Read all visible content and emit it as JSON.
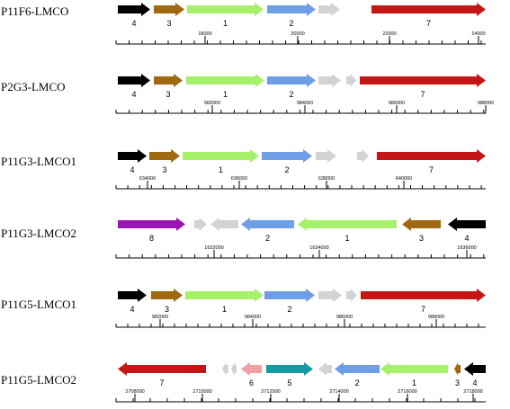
{
  "colors": {
    "black": "#000000",
    "brown": "#a0680f",
    "lightgreen": "#a6f06a",
    "blue": "#6e9fe6",
    "grey": "#d3d3d3",
    "red": "#c51616",
    "purple": "#9a14b4",
    "pink": "#f0a0a0",
    "teal": "#139aa3",
    "axis": "#000000"
  },
  "tracks": [
    {
      "label": "P11F6-LMCO",
      "ticks": [
        "18000",
        "20000",
        "22000",
        "24000"
      ],
      "genes": [
        {
          "num": "4",
          "color": "black",
          "dir": "right"
        },
        {
          "num": "3",
          "color": "brown",
          "dir": "right"
        },
        {
          "num": "1",
          "color": "lightgreen",
          "dir": "right"
        },
        {
          "num": "2",
          "color": "blue",
          "dir": "right"
        },
        {
          "num": "",
          "color": "grey",
          "dir": "right"
        },
        {
          "num": "7",
          "color": "red",
          "dir": "right"
        }
      ]
    },
    {
      "label": "P2G3-LMCO",
      "ticks": [
        "982000",
        "984000",
        "986000",
        "988000"
      ],
      "genes": [
        {
          "num": "4",
          "color": "black",
          "dir": "right"
        },
        {
          "num": "3",
          "color": "brown",
          "dir": "right"
        },
        {
          "num": "1",
          "color": "lightgreen",
          "dir": "right"
        },
        {
          "num": "2",
          "color": "blue",
          "dir": "right"
        },
        {
          "num": "",
          "color": "grey",
          "dir": "right"
        },
        {
          "num": "",
          "color": "grey",
          "dir": "right"
        },
        {
          "num": "7",
          "color": "red",
          "dir": "right"
        }
      ]
    },
    {
      "label": "P11G3-LMCO1",
      "ticks": [
        "634000",
        "636000",
        "638000",
        "640000"
      ],
      "genes": [
        {
          "num": "4",
          "color": "black",
          "dir": "right"
        },
        {
          "num": "3",
          "color": "brown",
          "dir": "right"
        },
        {
          "num": "1",
          "color": "lightgreen",
          "dir": "right"
        },
        {
          "num": "2",
          "color": "blue",
          "dir": "right"
        },
        {
          "num": "",
          "color": "grey",
          "dir": "right"
        },
        {
          "num": "",
          "color": "grey",
          "dir": "right"
        },
        {
          "num": "7",
          "color": "red",
          "dir": "right"
        }
      ]
    },
    {
      "label": "P11G3-LMCO2",
      "ticks": [
        "1632000",
        "1634000",
        "1636000"
      ],
      "genes": [
        {
          "num": "8",
          "color": "purple",
          "dir": "right"
        },
        {
          "num": "",
          "color": "grey",
          "dir": "right"
        },
        {
          "num": "",
          "color": "grey",
          "dir": "left"
        },
        {
          "num": "2",
          "color": "blue",
          "dir": "left"
        },
        {
          "num": "1",
          "color": "lightgreen",
          "dir": "left"
        },
        {
          "num": "3",
          "color": "brown",
          "dir": "left"
        },
        {
          "num": "4",
          "color": "black",
          "dir": "left"
        }
      ]
    },
    {
      "label": "P11G5-LMCO1",
      "ticks": [
        "982000",
        "984000",
        "986000",
        "988000"
      ],
      "genes": [
        {
          "num": "4",
          "color": "black",
          "dir": "right"
        },
        {
          "num": "3",
          "color": "brown",
          "dir": "right"
        },
        {
          "num": "1",
          "color": "lightgreen",
          "dir": "right"
        },
        {
          "num": "2",
          "color": "blue",
          "dir": "right"
        },
        {
          "num": "",
          "color": "grey",
          "dir": "right"
        },
        {
          "num": "",
          "color": "grey",
          "dir": "right"
        },
        {
          "num": "7",
          "color": "red",
          "dir": "right"
        }
      ]
    },
    {
      "label": "P11G5-LMCO2",
      "ticks": [
        "2708000",
        "2710000",
        "2712000",
        "2714000",
        "2716000",
        "2718000"
      ],
      "genes": [
        {
          "num": "7",
          "color": "red",
          "dir": "left"
        },
        {
          "num": "",
          "color": "grey",
          "dir": "left"
        },
        {
          "num": "",
          "color": "grey",
          "dir": "left"
        },
        {
          "num": "6",
          "color": "pink",
          "dir": "left"
        },
        {
          "num": "5",
          "color": "teal",
          "dir": "right"
        },
        {
          "num": "",
          "color": "grey",
          "dir": "left"
        },
        {
          "num": "2",
          "color": "blue",
          "dir": "left"
        },
        {
          "num": "1",
          "color": "lightgreen",
          "dir": "left"
        },
        {
          "num": "3",
          "color": "brown",
          "dir": "left"
        },
        {
          "num": "4",
          "color": "black",
          "dir": "left"
        }
      ]
    }
  ]
}
